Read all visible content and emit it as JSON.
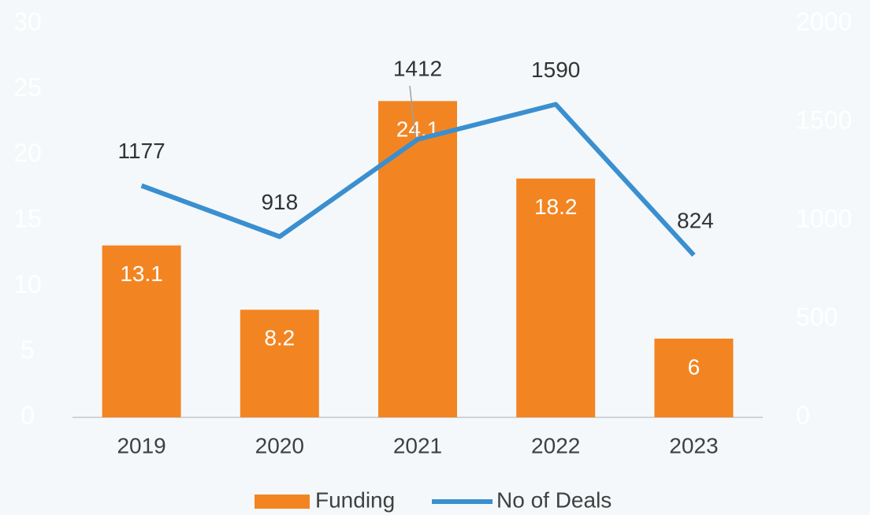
{
  "chart_data": {
    "type": "bar",
    "categories": [
      "2019",
      "2020",
      "2021",
      "2022",
      "2023"
    ],
    "series": [
      {
        "name": "Funding",
        "type": "bar",
        "color": "#f28522",
        "values": [
          13.1,
          8.2,
          24.1,
          18.2,
          6
        ]
      },
      {
        "name": "No of Deals",
        "type": "line",
        "axis": "y2",
        "color": "#3a8fd0",
        "values": [
          1177,
          918,
          1412,
          1590,
          824
        ]
      }
    ],
    "ylim": [
      0,
      30
    ],
    "yticks": [
      0,
      5,
      10,
      15,
      20,
      25,
      30
    ],
    "y2lim": [
      0,
      2000
    ],
    "y2ticks": [
      0,
      500,
      1000,
      1500,
      2000
    ],
    "legend": "bottom"
  }
}
